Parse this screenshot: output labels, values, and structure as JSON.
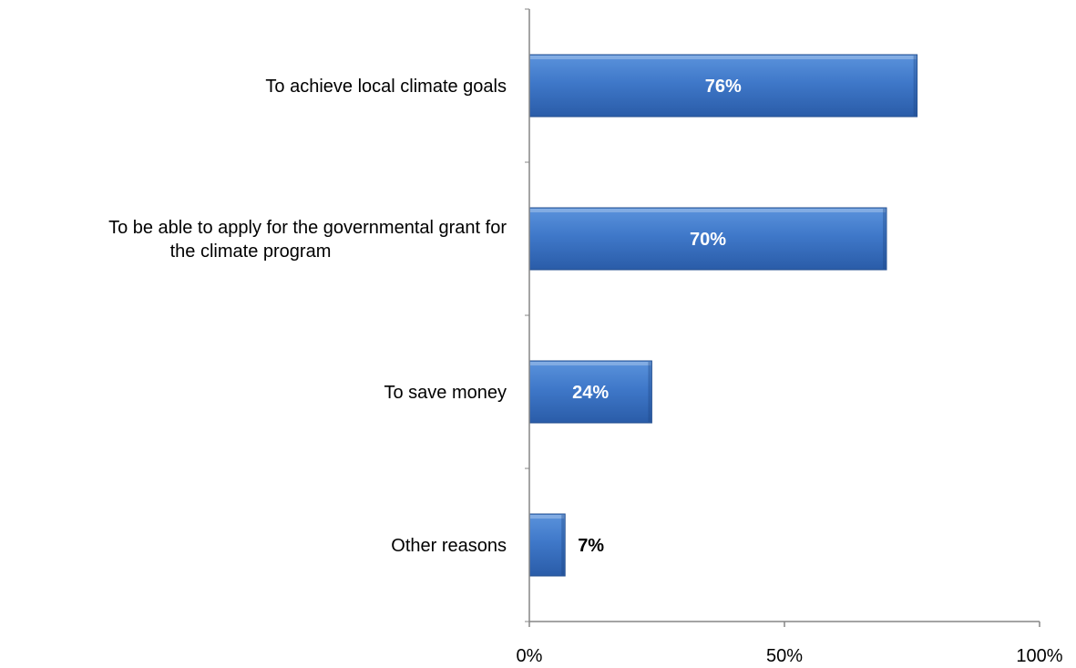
{
  "chart_data": {
    "type": "bar",
    "orientation": "horizontal",
    "categories": [
      "To achieve local climate goals",
      "To be able to apply for the governmental grant for the climate program",
      "To save money",
      "Other reasons"
    ],
    "category_label_lines": [
      [
        "To achieve local climate goals"
      ],
      [
        "To be able to apply for the governmental grant for",
        "the climate program"
      ],
      [
        "To save money"
      ],
      [
        "Other reasons"
      ]
    ],
    "values": [
      76,
      70,
      24,
      7
    ],
    "data_labels": [
      "76%",
      "70%",
      "24%",
      "7%"
    ],
    "xlim": [
      0,
      100
    ],
    "x_ticks": [
      0,
      50,
      100
    ],
    "x_tick_labels": [
      "0%",
      "50%",
      "100%"
    ],
    "title": "",
    "xlabel": "",
    "ylabel": "",
    "grid": false,
    "legend": "none",
    "colors": {
      "bar_fill_light": "#5b93dc",
      "bar_fill_mid": "#3f78c9",
      "bar_fill_dark": "#2a5ca8",
      "bar_edge": "#244f8f",
      "axis": "#868686",
      "label_text": "#000000",
      "data_label_inside": "#ffffff",
      "data_label_outside": "#000000"
    }
  }
}
